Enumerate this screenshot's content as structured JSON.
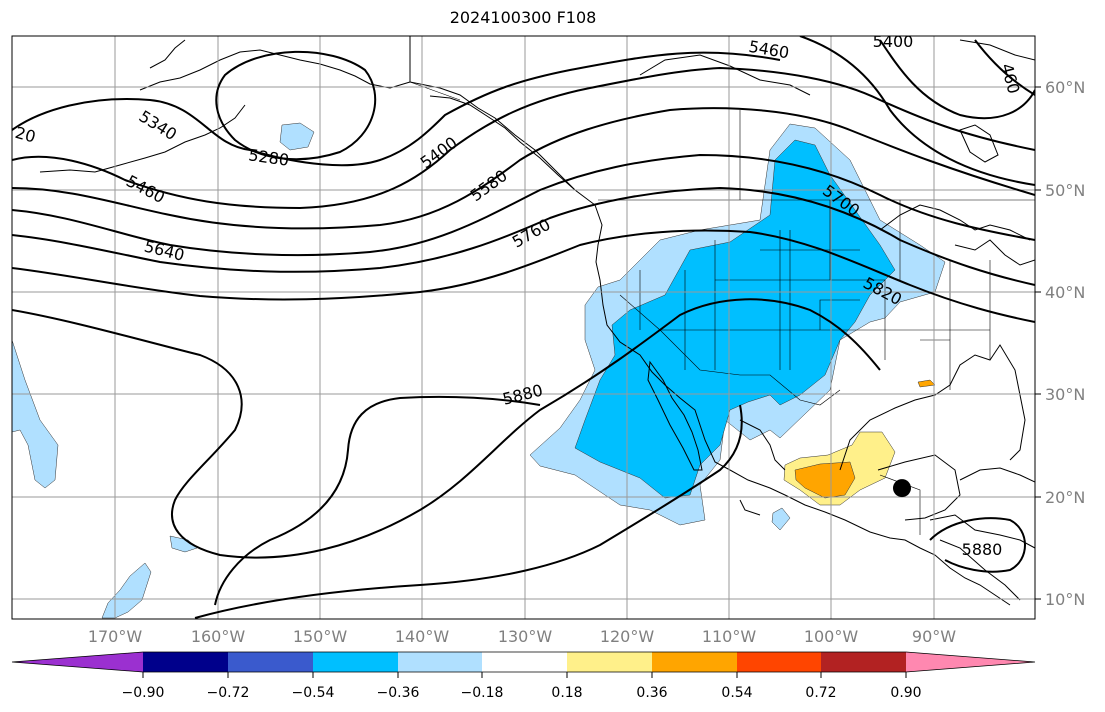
{
  "title": "2024100300 F108",
  "map": {
    "projection": "plate carree",
    "grid": true,
    "lon_range": [
      -180,
      -80
    ],
    "lat_range": [
      8,
      65
    ],
    "lon_ticks": [
      "170°W",
      "160°W",
      "150°W",
      "140°W",
      "130°W",
      "120°W",
      "110°W",
      "100°W",
      "90°W"
    ],
    "lat_ticks": [
      "60°N",
      "50°N",
      "40°N",
      "30°N",
      "20°N",
      "10°N"
    ],
    "contour_labels": [
      "5460",
      "5400",
      "5340",
      "5280",
      "5460",
      "5640",
      "5400",
      "5580",
      "5760",
      "5700",
      "5820",
      "5880",
      "5880",
      "460",
      "20"
    ],
    "marker": {
      "lon": -93,
      "lat": 20.8
    }
  },
  "colorbar": {
    "ticks": [
      "−0.90",
      "−0.72",
      "−0.54",
      "−0.36",
      "−0.18",
      "0.18",
      "0.36",
      "0.54",
      "0.72",
      "0.90"
    ],
    "colors": [
      "#9b30d0",
      "#00008b",
      "#3a5acd",
      "#00bfff",
      "#b0e0ff",
      "#ffffff",
      "#fff08a",
      "#ffa500",
      "#ff4500",
      "#b22222",
      "#ff88b0"
    ]
  }
}
